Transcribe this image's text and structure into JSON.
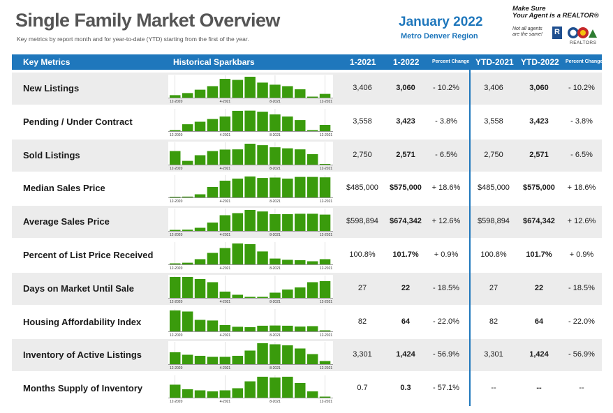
{
  "header": {
    "title": "Single Family Market Overview",
    "subtitle": "Key metrics by report month and for year-to-date (YTD) starting from the first of the year.",
    "period": "January 2022",
    "region": "Metro Denver Region"
  },
  "realtor": {
    "line1": "Make Sure",
    "line2": "Your Agent is a REALTOR®",
    "small": [
      "Not all agents",
      "are the same!"
    ],
    "logo_text": "R",
    "brand": "REALTORS"
  },
  "columns": {
    "metric": "Key Metrics",
    "sparkbars": "Historical Sparkbars",
    "m2021": "1-2021",
    "m2022": "1-2022",
    "pct": "Percent Change",
    "ytd2021": "YTD-2021",
    "ytd2022": "YTD-2022",
    "ytdpct": "Percent Change"
  },
  "spark_labels": [
    "12-2020",
    "4-2021",
    "8-2021",
    "12-2021"
  ],
  "colors": {
    "bar": "#3a9b0c",
    "accent": "#1f77bc",
    "shade": "#ececec"
  },
  "rows": [
    {
      "metric": "New Listings",
      "m2021": "3,406",
      "m2022": "3,060",
      "pct": "- 10.2%",
      "ytd2021": "3,406",
      "ytd2022": "3,060",
      "ytdpct": "- 10.2%",
      "bars": [
        0.12,
        0.22,
        0.38,
        0.55,
        0.9,
        0.85,
        1.0,
        0.72,
        0.62,
        0.55,
        0.4,
        0.05,
        0.18
      ]
    },
    {
      "metric": "Pending / Under Contract",
      "m2021": "3,558",
      "m2022": "3,423",
      "pct": "- 3.8%",
      "ytd2021": "3,558",
      "ytd2022": "3,423",
      "ytdpct": "- 3.8%",
      "bars": [
        0.05,
        0.33,
        0.45,
        0.58,
        0.7,
        0.97,
        0.98,
        0.93,
        0.8,
        0.7,
        0.53,
        0.05,
        0.3
      ]
    },
    {
      "metric": "Sold Listings",
      "m2021": "2,750",
      "m2022": "2,571",
      "pct": "- 6.5%",
      "ytd2021": "2,750",
      "ytd2022": "2,571",
      "ytdpct": "- 6.5%",
      "bars": [
        0.65,
        0.18,
        0.45,
        0.65,
        0.72,
        0.73,
        1.0,
        0.93,
        0.83,
        0.78,
        0.73,
        0.5,
        0.03
      ]
    },
    {
      "metric": "Median Sales Price",
      "m2021": "$485,000",
      "m2022": "$575,000",
      "pct": "+ 18.6%",
      "ytd2021": "$485,000",
      "ytd2022": "$575,000",
      "ytdpct": "+ 18.6%",
      "bars": [
        0.02,
        0.04,
        0.15,
        0.5,
        0.8,
        0.9,
        1.0,
        0.93,
        0.95,
        0.9,
        0.98,
        0.98,
        0.96
      ]
    },
    {
      "metric": "Average Sales Price",
      "m2021": "$598,894",
      "m2022": "$674,342",
      "pct": "+ 12.6%",
      "ytd2021": "$598,894",
      "ytd2022": "$674,342",
      "ytdpct": "+ 12.6%",
      "bars": [
        0.05,
        0.06,
        0.15,
        0.4,
        0.75,
        0.85,
        1.0,
        0.93,
        0.8,
        0.8,
        0.82,
        0.82,
        0.78
      ]
    },
    {
      "metric": "Percent of List Price Received",
      "m2021": "100.8%",
      "m2022": "101.7%",
      "pct": "+ 0.9%",
      "ytd2021": "100.8%",
      "ytd2022": "101.7%",
      "ytdpct": "+ 0.9%",
      "bars": [
        0.05,
        0.08,
        0.25,
        0.55,
        0.78,
        1.0,
        0.97,
        0.62,
        0.28,
        0.22,
        0.2,
        0.15,
        0.25
      ]
    },
    {
      "metric": "Days on Market Until Sale",
      "m2021": "27",
      "m2022": "22",
      "pct": "- 18.5%",
      "ytd2021": "27",
      "ytd2022": "22",
      "ytdpct": "- 18.5%",
      "bars": [
        1.0,
        1.0,
        0.9,
        0.75,
        0.3,
        0.15,
        0.05,
        0.05,
        0.25,
        0.4,
        0.5,
        0.75,
        0.8
      ]
    },
    {
      "metric": "Housing Affordability Index",
      "m2021": "82",
      "m2022": "64",
      "pct": "- 22.0%",
      "ytd2021": "82",
      "ytd2022": "64",
      "ytdpct": "- 22.0%",
      "bars": [
        1.0,
        0.95,
        0.55,
        0.52,
        0.3,
        0.22,
        0.2,
        0.27,
        0.28,
        0.27,
        0.23,
        0.25,
        0.05
      ]
    },
    {
      "metric": "Inventory of Active Listings",
      "m2021": "3,301",
      "m2022": "1,424",
      "pct": "- 56.9%",
      "ytd2021": "3,301",
      "ytd2022": "1,424",
      "ytdpct": "- 56.9%",
      "bars": [
        0.57,
        0.45,
        0.4,
        0.35,
        0.35,
        0.4,
        0.65,
        1.0,
        0.95,
        0.9,
        0.75,
        0.48,
        0.15
      ]
    },
    {
      "metric": "Months Supply of Inventory",
      "m2021": "0.7",
      "m2022": "0.3",
      "pct": "- 57.1%",
      "ytd2021": "--",
      "ytd2022": "--",
      "ytdpct": "--",
      "bars": [
        0.62,
        0.4,
        0.35,
        0.3,
        0.35,
        0.45,
        0.78,
        1.0,
        0.96,
        1.0,
        0.7,
        0.3,
        0.05
      ]
    }
  ]
}
